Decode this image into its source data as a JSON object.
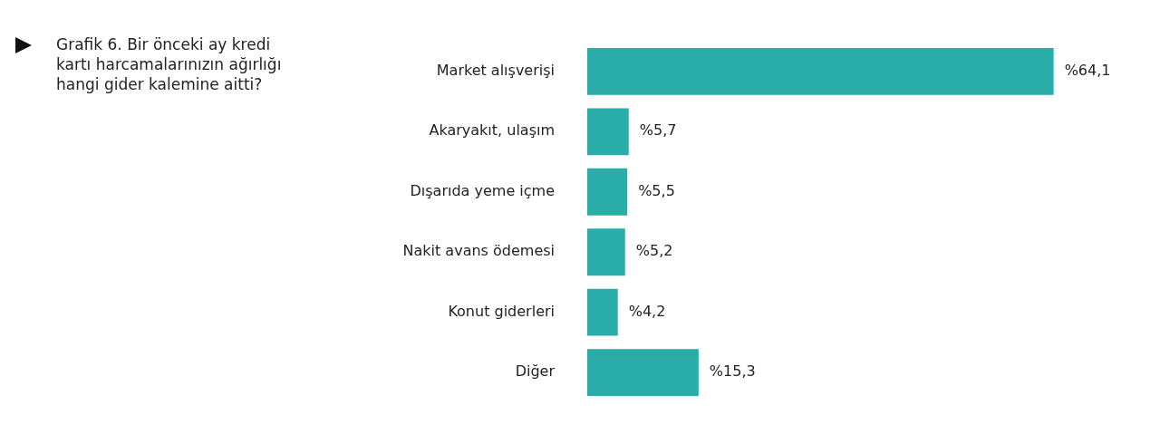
{
  "chart_data": {
    "type": "bar",
    "orientation": "horizontal",
    "title": "Grafik 6. Bir önceki ay kredi kartı harcamalarınızın ağırlığı hangi gider kalemine aitti?",
    "categories": [
      "Market alışverişi",
      "Akaryakıt, ulaşım",
      "Dışarıda yeme içme",
      "Nakit avans ödemesi",
      "Konut giderleri",
      "Diğer"
    ],
    "values": [
      64.1,
      5.7,
      5.5,
      5.2,
      4.2,
      15.3
    ],
    "value_labels": [
      "%64,1",
      "%5,7",
      "%5,5",
      "%5,2",
      "%4,2",
      "%15,3"
    ],
    "color": "#2aaca8",
    "grid": false,
    "legend": false
  }
}
